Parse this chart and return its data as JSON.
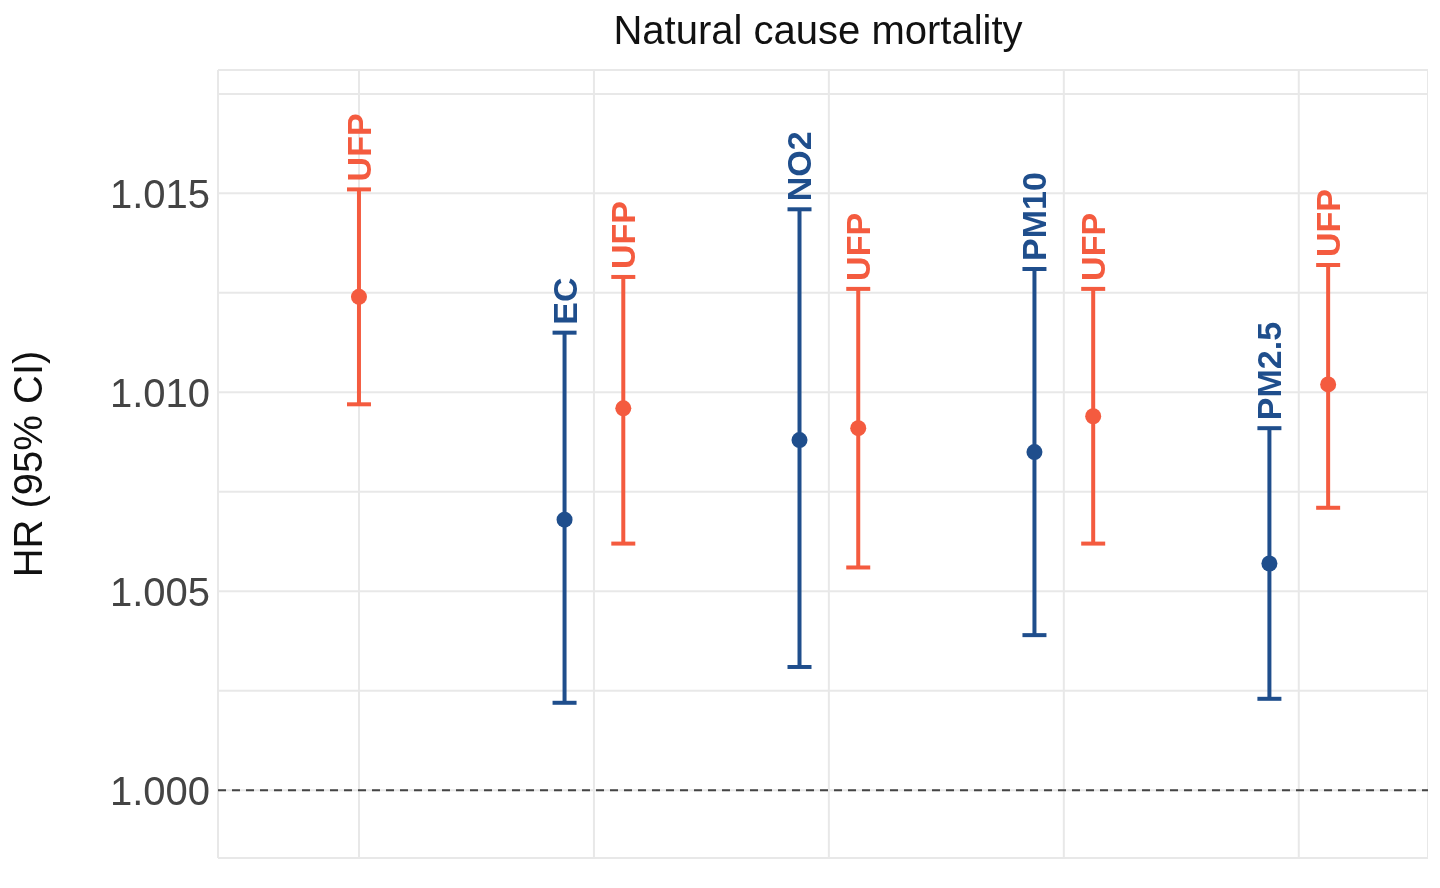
{
  "chart_data": {
    "type": "scatter",
    "title": "Natural cause mortality",
    "ylabel": "HR (95% CI)",
    "categories": [
      null,
      null,
      null,
      null,
      null
    ],
    "ylim": [
      0.9983,
      1.0181
    ],
    "yticks": [
      {
        "value": 1,
        "label": "1.000"
      },
      {
        "value": 1.0025,
        "label": null
      },
      {
        "value": 1.005,
        "label": "1.005"
      },
      {
        "value": 1.0075,
        "label": null
      },
      {
        "value": 1.01,
        "label": "1.010"
      },
      {
        "value": 1.0125,
        "label": null
      },
      {
        "value": 1.015,
        "label": "1.015"
      },
      {
        "value": 1.0175,
        "label": null
      }
    ],
    "grid": true,
    "marker": "circle",
    "series": [
      {
        "color": "#1f4e8c",
        "values": [
          null,
          1.0068,
          1.0088,
          1.0085,
          1.0057
        ],
        "errors": [
          null,
          [
            1.0022,
            1.0115
          ],
          [
            1.0031,
            1.0146
          ],
          [
            1.0039,
            1.0131
          ],
          [
            1.0023,
            1.0091
          ]
        ]
      },
      {
        "color": "#f45b3f",
        "values": [
          1.0124,
          1.0096,
          1.0091,
          1.0094,
          1.0102
        ],
        "errors": [
          [
            1.0097,
            1.0151
          ],
          [
            1.0062,
            1.0129
          ],
          [
            1.0056,
            1.0126
          ],
          [
            1.0062,
            1.0126
          ],
          [
            1.0071,
            1.0132
          ]
        ]
      }
    ],
    "annotations": [
      {
        "text": "UFP",
        "y": 1.0151
      },
      {
        "text": "EC",
        "y": 1.0115
      },
      {
        "text": "UFP",
        "y": 1.0129
      },
      {
        "text": "NO2",
        "y": 1.0146
      },
      {
        "text": "UFP",
        "y": 1.0126
      },
      {
        "text": "PM10",
        "y": 1.0131
      },
      {
        "text": "UFP",
        "y": 1.0126
      },
      {
        "text": "PM2.5",
        "y": 1.0091
      },
      {
        "text": "UFP",
        "y": 1.0132
      }
    ],
    "ref_lines": [
      {
        "axis": "y",
        "value": 1,
        "line_style": "dashed",
        "color": "#444444"
      }
    ]
  }
}
